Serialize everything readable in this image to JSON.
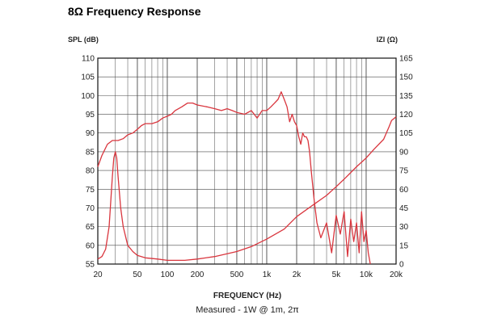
{
  "page": {
    "title": "8Ω Frequency Response"
  },
  "chart_data": {
    "type": "line",
    "title": "8Ω Frequency Response",
    "xlabel": "FREQUENCY (Hz)",
    "subtitle": "Measured - 1W @ 1m, 2π",
    "ylabel_left": "SPL (dB)",
    "ylabel_right": "IZI (Ω)",
    "x_scale": "log",
    "xlim": [
      20,
      20000
    ],
    "ylim_left": [
      55,
      110
    ],
    "ylim_right": [
      0,
      165
    ],
    "grid": true,
    "x_ticks": [
      20,
      50,
      100,
      200,
      500,
      1000,
      2000,
      5000,
      10000,
      20000
    ],
    "x_tick_labels": [
      "20",
      "50",
      "100",
      "200",
      "500",
      "1k",
      "2k",
      "5k",
      "10k",
      "20k"
    ],
    "y_ticks_left": [
      110,
      105,
      100,
      95,
      90,
      85,
      80,
      75,
      70,
      65,
      60,
      55
    ],
    "y_ticks_right": [
      165,
      150,
      135,
      120,
      105,
      90,
      75,
      60,
      45,
      30,
      15,
      0
    ],
    "colors": {
      "curve": "#d9363e",
      "grid": "#4a4a4a",
      "frame": "#111111"
    },
    "series": [
      {
        "axis": "left",
        "x": [
          20,
          22,
          25,
          28,
          32,
          36,
          40,
          45,
          50,
          55,
          60,
          70,
          80,
          90,
          100,
          110,
          120,
          140,
          160,
          180,
          200,
          250,
          300,
          350,
          400,
          450,
          500,
          600,
          700,
          800,
          900,
          1000,
          1100,
          1200,
          1300,
          1400,
          1500,
          1600,
          1700,
          1800,
          1900,
          2000,
          2100,
          2200,
          2300,
          2400,
          2500,
          2600,
          2700,
          2800,
          3000,
          3200,
          3500,
          4000,
          4500,
          5000,
          5500,
          6000,
          6500,
          7000,
          7500,
          8000,
          8500,
          9000,
          9500,
          10000,
          10500,
          11000
        ],
        "y": [
          81,
          84,
          87,
          88,
          88,
          88.5,
          89.5,
          90,
          91,
          92,
          92.5,
          92.5,
          93,
          94,
          94.5,
          95,
          96,
          97,
          98,
          98,
          97.5,
          97,
          96.5,
          96,
          96.5,
          96,
          95.5,
          95,
          96,
          94,
          96,
          96,
          97,
          98,
          99,
          101,
          99,
          97,
          93,
          95,
          93,
          92,
          89,
          87,
          90,
          89,
          89,
          88,
          85,
          80,
          72,
          66,
          62,
          66,
          58,
          68,
          63,
          69,
          57,
          67,
          61,
          66,
          58,
          69,
          61,
          64,
          58,
          55
        ]
      },
      {
        "axis": "right",
        "x": [
          20,
          22,
          24,
          26,
          28,
          29,
          30,
          31,
          32,
          34,
          36,
          40,
          45,
          50,
          60,
          80,
          100,
          150,
          200,
          300,
          500,
          700,
          1000,
          1500,
          2000,
          3000,
          4000,
          5000,
          6000,
          8000,
          10000,
          12000,
          15000,
          17000,
          18000,
          20000
        ],
        "y": [
          4,
          6,
          12,
          30,
          70,
          85,
          90,
          85,
          70,
          45,
          30,
          15,
          10,
          7,
          5,
          4,
          3,
          3,
          4,
          6,
          10,
          14,
          20,
          28,
          38,
          48,
          55,
          62,
          68,
          78,
          85,
          92,
          100,
          110,
          115,
          118
        ]
      }
    ]
  }
}
